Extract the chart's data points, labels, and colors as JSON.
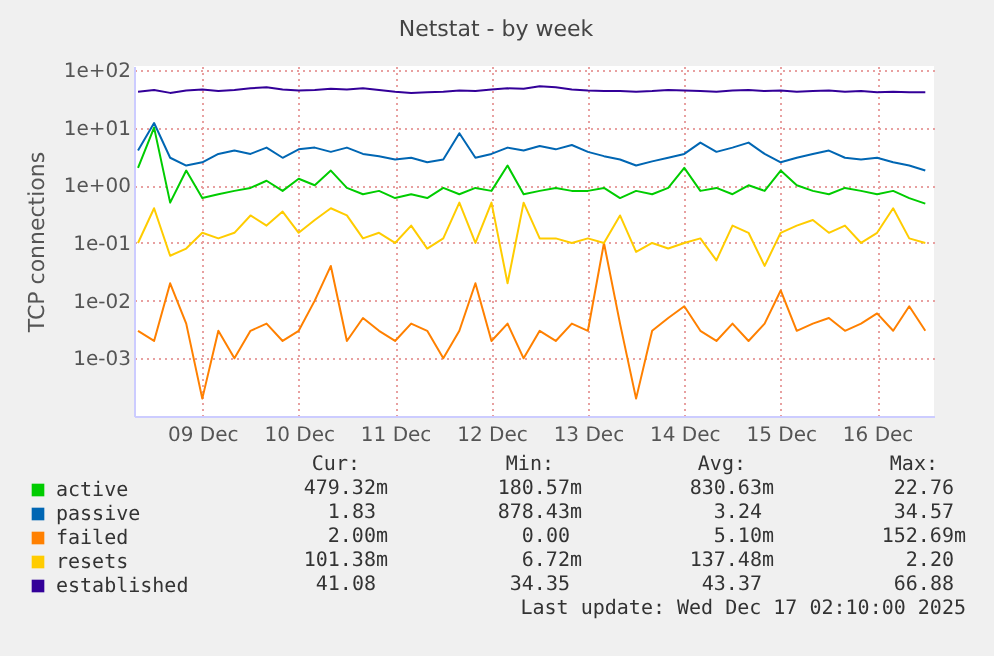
{
  "chart_data": {
    "type": "line",
    "title": "Netstat - by week",
    "ylabel": "TCP connections",
    "log": true,
    "grid": true,
    "legend": "bottom left",
    "xlim": [
      "2025-12-08T19:00",
      "2025-12-17T02:10"
    ],
    "xticks": [
      {
        "value": "2025-12-09T12:00",
        "label": "09 Dec"
      },
      {
        "value": "2025-12-10T12:00",
        "label": "10 Dec"
      },
      {
        "value": "2025-12-11T12:00",
        "label": "11 Dec"
      },
      {
        "value": "2025-12-12T12:00",
        "label": "12 Dec"
      },
      {
        "value": "2025-12-13T12:00",
        "label": "13 Dec"
      },
      {
        "value": "2025-12-14T12:00",
        "label": "14 Dec"
      },
      {
        "value": "2025-12-15T12:00",
        "label": "15 Dec"
      },
      {
        "value": "2025-12-16T12:00",
        "label": "16 Dec"
      }
    ],
    "ylim": [
      0.0001,
      117
    ],
    "yticks": [
      {
        "value": 0.001,
        "label": "1e-03"
      },
      {
        "value": 0.01,
        "label": "1e-02"
      },
      {
        "value": 0.1,
        "label": "1e-01"
      },
      {
        "value": 1,
        "label": "1e+00"
      },
      {
        "value": 10,
        "label": "1e+01"
      },
      {
        "value": 100,
        "label": "1e+02"
      }
    ],
    "x": [
      "2025-12-08T20:00",
      "2025-12-09T00:00",
      "2025-12-09T04:00",
      "2025-12-09T08:00",
      "2025-12-09T12:00",
      "2025-12-09T16:00",
      "2025-12-09T20:00",
      "2025-12-10T00:00",
      "2025-12-10T04:00",
      "2025-12-10T08:00",
      "2025-12-10T12:00",
      "2025-12-10T16:00",
      "2025-12-10T20:00",
      "2025-12-11T00:00",
      "2025-12-11T04:00",
      "2025-12-11T08:00",
      "2025-12-11T12:00",
      "2025-12-11T16:00",
      "2025-12-11T20:00",
      "2025-12-12T00:00",
      "2025-12-12T04:00",
      "2025-12-12T08:00",
      "2025-12-12T12:00",
      "2025-12-12T16:00",
      "2025-12-12T20:00",
      "2025-12-13T00:00",
      "2025-12-13T04:00",
      "2025-12-13T08:00",
      "2025-12-13T12:00",
      "2025-12-13T16:00",
      "2025-12-13T20:00",
      "2025-12-14T00:00",
      "2025-12-14T04:00",
      "2025-12-14T08:00",
      "2025-12-14T12:00",
      "2025-12-14T16:00",
      "2025-12-14T20:00",
      "2025-12-15T00:00",
      "2025-12-15T04:00",
      "2025-12-15T08:00",
      "2025-12-15T12:00",
      "2025-12-15T16:00",
      "2025-12-15T20:00",
      "2025-12-16T00:00",
      "2025-12-16T04:00",
      "2025-12-16T08:00",
      "2025-12-16T12:00",
      "2025-12-16T16:00",
      "2025-12-16T20:00",
      "2025-12-17T00:00"
    ],
    "series": [
      {
        "name": "active",
        "color": "#00cc00",
        "values": [
          2,
          10,
          0.5,
          1.8,
          0.6,
          0.7,
          0.8,
          0.9,
          1.2,
          0.8,
          1.3,
          1,
          1.8,
          0.9,
          0.7,
          0.8,
          0.6,
          0.7,
          0.6,
          0.9,
          0.7,
          0.9,
          0.8,
          2.2,
          0.7,
          0.8,
          0.9,
          0.8,
          0.8,
          0.9,
          0.6,
          0.8,
          0.7,
          0.9,
          2,
          0.8,
          0.9,
          0.7,
          1,
          0.8,
          1.8,
          1,
          0.8,
          0.7,
          0.9,
          0.8,
          0.7,
          0.8,
          0.6,
          0.48
        ]
      },
      {
        "name": "passive",
        "color": "#0066b3",
        "values": [
          4,
          12,
          3,
          2.2,
          2.5,
          3.5,
          4,
          3.5,
          4.5,
          3,
          4.2,
          4.5,
          3.8,
          4.5,
          3.5,
          3.2,
          2.8,
          3,
          2.5,
          2.8,
          8,
          3,
          3.5,
          4.5,
          4,
          4.8,
          4.2,
          5,
          3.8,
          3.2,
          2.8,
          2.2,
          2.6,
          3,
          3.5,
          5.5,
          3.8,
          4.5,
          5.5,
          3.5,
          2.5,
          3,
          3.5,
          4,
          3,
          2.8,
          3,
          2.5,
          2.2,
          1.8
        ]
      },
      {
        "name": "failed",
        "color": "#ff8000",
        "values": [
          0.003,
          0.002,
          0.02,
          0.004,
          0.0002,
          0.003,
          0.001,
          0.003,
          0.004,
          0.002,
          0.003,
          0.01,
          0.04,
          0.002,
          0.005,
          0.003,
          0.002,
          0.004,
          0.003,
          0.001,
          0.003,
          0.02,
          0.002,
          0.004,
          0.001,
          0.003,
          0.002,
          0.004,
          0.003,
          0.1,
          0.004,
          0.0002,
          0.003,
          0.005,
          0.008,
          0.003,
          0.002,
          0.004,
          0.002,
          0.004,
          0.015,
          0.003,
          0.004,
          0.005,
          0.003,
          0.004,
          0.006,
          0.003,
          0.008,
          0.003
        ]
      },
      {
        "name": "resets",
        "color": "#ffcc00",
        "values": [
          0.1,
          0.4,
          0.06,
          0.08,
          0.15,
          0.12,
          0.15,
          0.3,
          0.2,
          0.35,
          0.15,
          0.25,
          0.4,
          0.3,
          0.12,
          0.15,
          0.1,
          0.2,
          0.08,
          0.12,
          0.5,
          0.1,
          0.5,
          0.02,
          0.5,
          0.12,
          0.12,
          0.1,
          0.12,
          0.1,
          0.3,
          0.07,
          0.1,
          0.08,
          0.1,
          0.12,
          0.05,
          0.2,
          0.15,
          0.04,
          0.15,
          0.2,
          0.25,
          0.15,
          0.2,
          0.1,
          0.15,
          0.4,
          0.12,
          0.1
        ]
      },
      {
        "name": "established",
        "color": "#330099",
        "values": [
          42,
          45,
          40,
          44,
          46,
          43,
          45,
          48,
          50,
          46,
          44,
          45,
          47,
          46,
          48,
          45,
          42,
          40,
          41,
          42,
          44,
          43,
          46,
          48,
          47,
          52,
          50,
          46,
          44,
          43,
          43,
          42,
          43,
          45,
          44,
          43,
          42,
          44,
          45,
          43,
          44,
          42,
          43,
          44,
          42,
          43,
          41,
          42,
          41,
          41
        ]
      }
    ],
    "annotations": [
      "Cur:",
      "Min:",
      "Avg:",
      "Max:",
      "479.32m",
      "180.57m",
      "830.63m",
      "22.76",
      "1.83",
      "878.43m",
      "3.24",
      "34.57",
      "2.00m",
      "0.00",
      "5.10m",
      "152.69m",
      "101.38m",
      "6.72m",
      "137.48m",
      "2.20",
      "41.08",
      "34.35",
      "43.37",
      "66.88",
      "Last update: Wed Dec 17 02:10:00 2025"
    ]
  }
}
